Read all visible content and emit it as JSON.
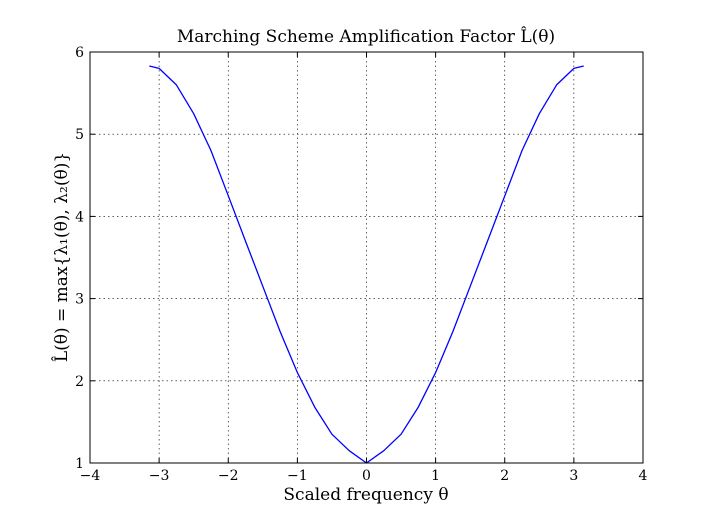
{
  "chart_data": {
    "type": "line",
    "title": "Marching Scheme Amplification Factor L̂(θ)",
    "xlabel": "Scaled frequency  θ",
    "ylabel": "L̂(θ) = max{λ₁(θ), λ₂(θ)}",
    "xlim": [
      -4,
      4
    ],
    "ylim": [
      1,
      6
    ],
    "xticks": [
      -4,
      -3,
      -2,
      -1,
      0,
      1,
      2,
      3,
      4
    ],
    "xtick_labels": [
      "−4",
      "−3",
      "−2",
      "−1",
      "0",
      "1",
      "2",
      "3",
      "4"
    ],
    "yticks": [
      1,
      2,
      3,
      4,
      5,
      6
    ],
    "ytick_labels": [
      "1",
      "2",
      "3",
      "4",
      "5",
      "6"
    ],
    "grid": true,
    "line_color": "#0000ff",
    "series": [
      {
        "x": [
          -3.1416,
          -3.0,
          -2.75,
          -2.5,
          -2.25,
          -2.0,
          -1.75,
          -1.5,
          -1.25,
          -1.0,
          -0.75,
          -0.5,
          -0.25,
          0.0,
          0.25,
          0.5,
          0.75,
          1.0,
          1.25,
          1.5,
          1.75,
          2.0,
          2.25,
          2.5,
          2.75,
          3.0,
          3.1416
        ],
        "values": [
          5.83,
          5.8,
          5.6,
          5.25,
          4.8,
          4.25,
          3.7,
          3.15,
          2.6,
          2.1,
          1.68,
          1.35,
          1.15,
          1.0,
          1.15,
          1.35,
          1.68,
          2.1,
          2.6,
          3.15,
          3.7,
          4.25,
          4.8,
          5.25,
          5.6,
          5.8,
          5.83
        ]
      }
    ]
  }
}
